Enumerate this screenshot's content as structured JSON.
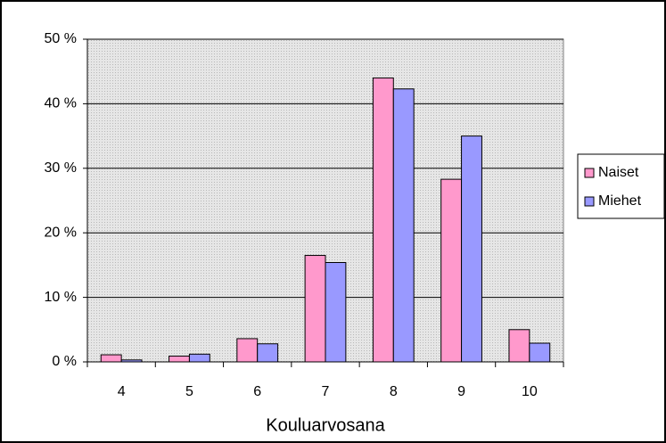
{
  "chart_data": {
    "type": "bar",
    "x_label": "Kouluarvosana",
    "categories": [
      "4",
      "5",
      "6",
      "7",
      "8",
      "9",
      "10"
    ],
    "series": [
      {
        "name": "Naiset",
        "color": "#ff99cc",
        "values": [
          1.1,
          0.9,
          3.6,
          16.5,
          44,
          28.3,
          5
        ]
      },
      {
        "name": "Miehet",
        "color": "#9999ff",
        "values": [
          0.3,
          1.2,
          2.8,
          15.4,
          42.3,
          35,
          2.9
        ]
      }
    ],
    "ylim": [
      0,
      50
    ],
    "yticks": [
      {
        "value": 0,
        "label": "0 %"
      },
      {
        "value": 10,
        "label": "10 %"
      },
      {
        "value": 20,
        "label": "20 %"
      },
      {
        "value": 30,
        "label": "30 %"
      },
      {
        "value": 40,
        "label": "40 %"
      },
      {
        "value": 50,
        "label": "50 %"
      }
    ],
    "grid": true,
    "legend": "right"
  }
}
